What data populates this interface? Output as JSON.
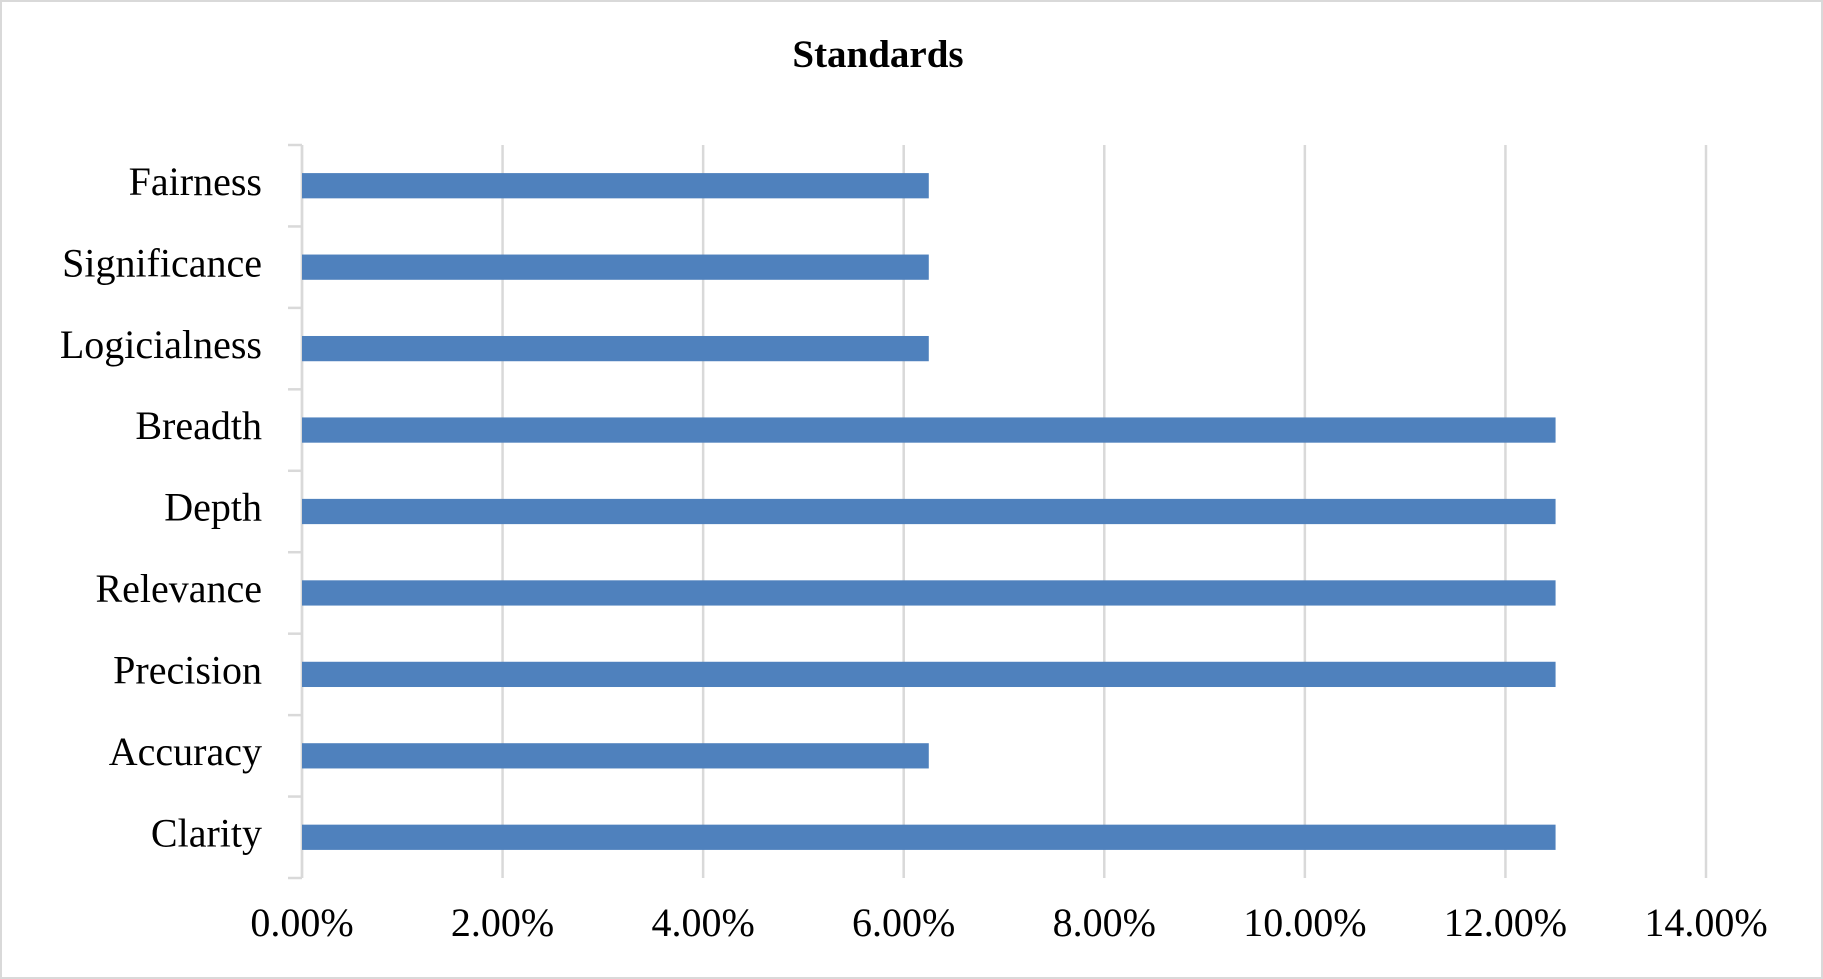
{
  "chart_data": {
    "type": "bar",
    "orientation": "horizontal",
    "title": "Standards",
    "categories": [
      "Clarity",
      "Accuracy",
      "Precision",
      "Relevance",
      "Depth",
      "Breadth",
      "Logicialness",
      "Significance",
      "Fairness"
    ],
    "values": [
      12.5,
      6.25,
      12.5,
      12.5,
      12.5,
      12.5,
      6.25,
      6.25,
      6.25
    ],
    "color": "#4f81bd",
    "xlim": [
      0,
      14
    ],
    "xticks": [
      {
        "value": 0,
        "label": "0.00%"
      },
      {
        "value": 2,
        "label": "2.00%"
      },
      {
        "value": 4,
        "label": "4.00%"
      },
      {
        "value": 6,
        "label": "6.00%"
      },
      {
        "value": 8,
        "label": "8.00%"
      },
      {
        "value": 10,
        "label": "10.00%"
      },
      {
        "value": 12,
        "label": "12.00%"
      },
      {
        "value": 14,
        "label": "14.00%"
      }
    ],
    "grid": true
  }
}
